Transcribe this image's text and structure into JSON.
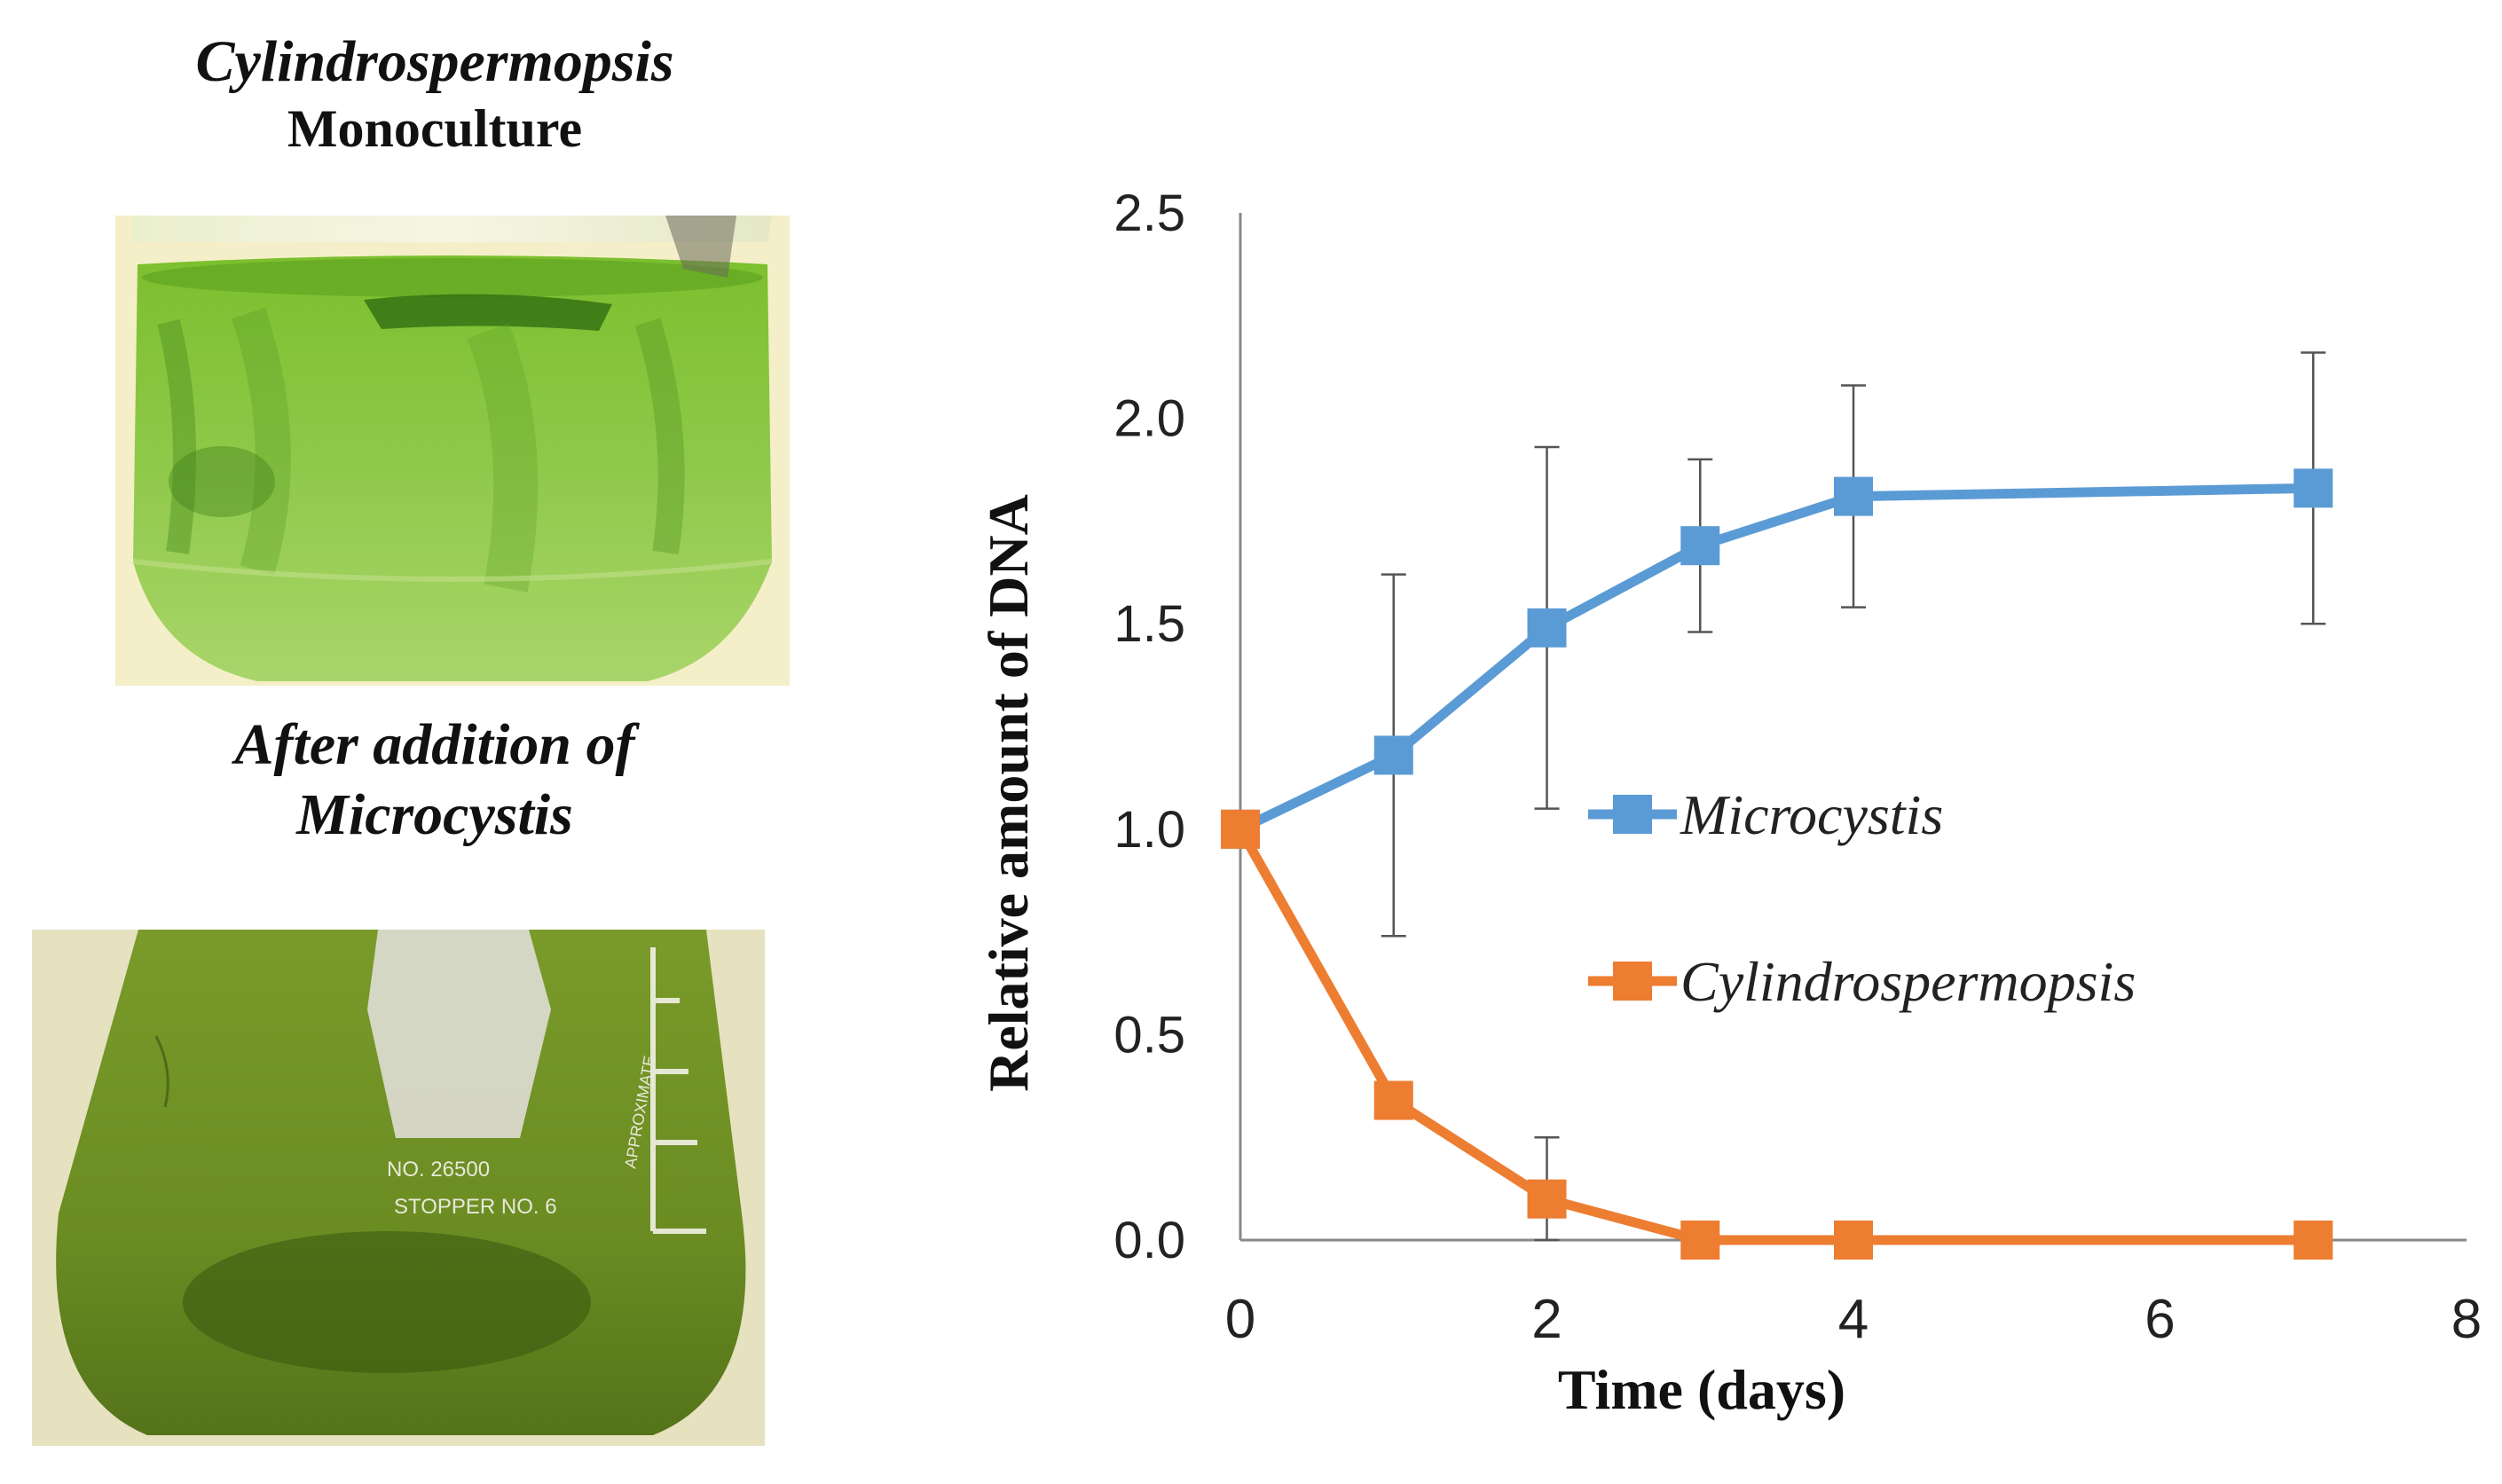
{
  "left_panel": {
    "top_title_line1": "Cylindrospermopsis",
    "top_title_line2": "Monoculture",
    "bottom_title_line1": "After addition of",
    "bottom_title_line2": "Microcystis",
    "flask_label_no": "NO. 26500",
    "flask_label_stopper": "STOPPER NO. 6",
    "flask_label_approx": "APPROXIMATE"
  },
  "colors": {
    "microcystis": "#5b9bd5",
    "cylindrospermopsis": "#ed7d31",
    "axis": "#888888",
    "error_bar": "#555555"
  },
  "chart_data": {
    "type": "line",
    "xlabel": "Time (days)",
    "ylabel": "Relative amount of DNA",
    "xlim": [
      0,
      8
    ],
    "ylim": [
      0,
      2.5
    ],
    "x_ticks": [
      "0",
      "2",
      "4",
      "6",
      "8"
    ],
    "y_ticks": [
      "0.0",
      "0.5",
      "1.0",
      "1.5",
      "2.0",
      "2.5"
    ],
    "legend_position": "center-right",
    "series": [
      {
        "name": "Microcystis",
        "x": [
          0,
          1,
          2,
          3,
          4,
          7
        ],
        "y": [
          1.0,
          1.18,
          1.49,
          1.69,
          1.81,
          1.83
        ],
        "err": [
          0.0,
          0.44,
          0.44,
          0.21,
          0.27,
          0.33
        ]
      },
      {
        "name": "Cylindrospermopsis",
        "x": [
          0,
          1,
          2,
          3,
          4,
          7
        ],
        "y": [
          1.0,
          0.34,
          0.1,
          0.0,
          0.0,
          0.0
        ],
        "err": [
          0.0,
          0.0,
          0.15,
          0.0,
          0.0,
          0.0
        ]
      }
    ]
  }
}
